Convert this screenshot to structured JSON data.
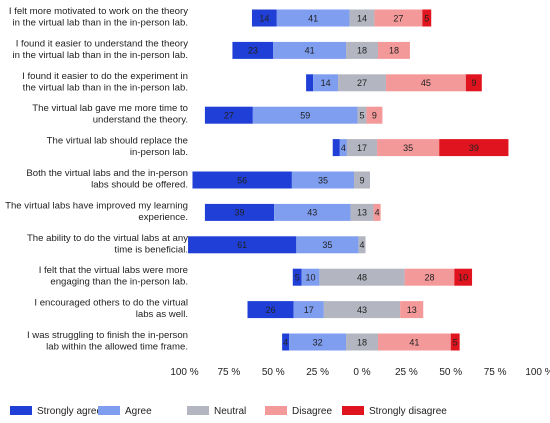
{
  "chart_data": {
    "type": "bar",
    "orientation": "horizontal",
    "stacking": "diverging",
    "title": "",
    "xlabel": "",
    "ylabel": "",
    "xlim": [
      -100,
      100
    ],
    "x_ticks": [
      "100 %",
      "75 %",
      "50 %",
      "25 %",
      "0 %",
      "25 %",
      "50 %",
      "75 %",
      "100 %"
    ],
    "grid": false,
    "legend_position": "bottom",
    "categories": [
      [
        "I felt more motivated to work on the theory",
        "in the virtual lab than in the in-person lab."
      ],
      [
        "I found it easier to understand the theory",
        "in the virtual lab than in the in-person lab."
      ],
      [
        "I found it easier to do the experiment in",
        "the virtual lab than in the in-person lab."
      ],
      [
        "The virtual lab gave me more time to",
        "understand the theory."
      ],
      [
        "The virtual lab should replace the",
        "in-person lab."
      ],
      [
        "Both the virtual labs and the in-person",
        "labs should be offered."
      ],
      [
        "The virtual labs have improved my learning",
        "experience."
      ],
      [
        "The ability to do the virtual labs at any",
        "time is beneficial."
      ],
      [
        "I felt that the virtual labs were more",
        "engaging than the in-person lab."
      ],
      [
        "I encouraged others to do the virtual",
        "labs as well."
      ],
      [
        "I was struggling to finish the in-person",
        "lab within the allowed time frame."
      ]
    ],
    "series": [
      {
        "name": "Strongly agree",
        "color": "#1f3fd6",
        "values": [
          14,
          23,
          4,
          27,
          4,
          56,
          39,
          61,
          5,
          26,
          4
        ]
      },
      {
        "name": "Agree",
        "color": "#7f9ef0",
        "values": [
          41,
          41,
          14,
          59,
          4,
          35,
          43,
          35,
          10,
          17,
          32
        ]
      },
      {
        "name": "Neutral",
        "color": "#b3b6c1",
        "values": [
          14,
          18,
          27,
          5,
          17,
          9,
          13,
          4,
          48,
          43,
          18
        ]
      },
      {
        "name": "Disagree",
        "color": "#f4999a",
        "values": [
          27,
          18,
          45,
          9,
          35,
          0,
          4,
          0,
          28,
          13,
          41
        ]
      },
      {
        "name": "Strongly disagree",
        "color": "#e0141e",
        "values": [
          5,
          0,
          9,
          0,
          39,
          0,
          0,
          0,
          10,
          0,
          5
        ]
      }
    ],
    "value_labels": [
      [
        "14",
        "41",
        "14",
        "27",
        "5"
      ],
      [
        "23",
        "41",
        "18",
        "18",
        ""
      ],
      [
        "",
        "14",
        "27",
        "45",
        "9"
      ],
      [
        "27",
        "59",
        "5",
        "9",
        ""
      ],
      [
        "",
        "4",
        "17",
        "35",
        "39"
      ],
      [
        "56",
        "35",
        "9",
        "",
        ""
      ],
      [
        "39",
        "43",
        "13",
        "4",
        ""
      ],
      [
        "61",
        "35",
        "4",
        "",
        ""
      ],
      [
        "5",
        "10",
        "48",
        "28",
        "10"
      ],
      [
        "26",
        "17",
        "43",
        "13",
        ""
      ],
      [
        "4",
        "32",
        "18",
        "41",
        "5"
      ]
    ]
  }
}
